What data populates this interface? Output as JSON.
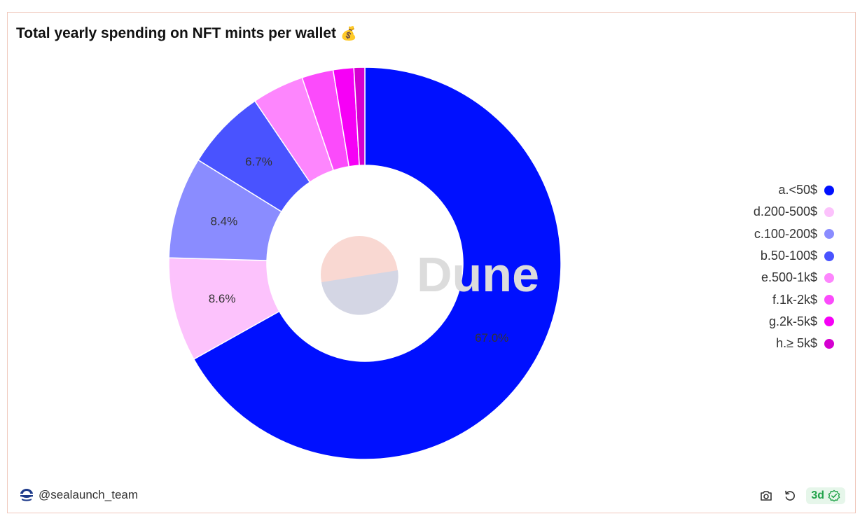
{
  "header": {
    "title": "Total yearly spending on NFT mints per wallet",
    "title_icon": "💰",
    "title_icon_name": "money-bag-icon"
  },
  "watermark": {
    "text": "Dune"
  },
  "chart_data": {
    "type": "pie",
    "donut": true,
    "title": "Total yearly spending on NFT mints per wallet",
    "slices": [
      {
        "label": "a.<50$",
        "value": 67.0,
        "color": "#0010ff",
        "value_label": "67.0%"
      },
      {
        "label": "d.200-500$",
        "value": 8.6,
        "color": "#fcc2fc",
        "value_label": "8.6%"
      },
      {
        "label": "c.100-200$",
        "value": 8.4,
        "color": "#8a8cff",
        "value_label": "8.4%"
      },
      {
        "label": "b.50-100$",
        "value": 6.7,
        "color": "#4953ff",
        "value_label": "6.7%"
      },
      {
        "label": "e.500-1k$",
        "value": 4.3,
        "color": "#fd86fd",
        "value_label": ""
      },
      {
        "label": "f.1k-2k$",
        "value": 2.6,
        "color": "#fb4bfb",
        "value_label": ""
      },
      {
        "label": "g.2k-5k$",
        "value": 1.7,
        "color": "#f600f6",
        "value_label": ""
      },
      {
        "label": "h.≥ 5k$",
        "value": 0.9,
        "color": "#d400d0",
        "value_label": ""
      }
    ],
    "legend_position": "right"
  },
  "footer": {
    "user": "@sealaunch_team",
    "badge": "3d",
    "badge_color": "#22a34a"
  }
}
